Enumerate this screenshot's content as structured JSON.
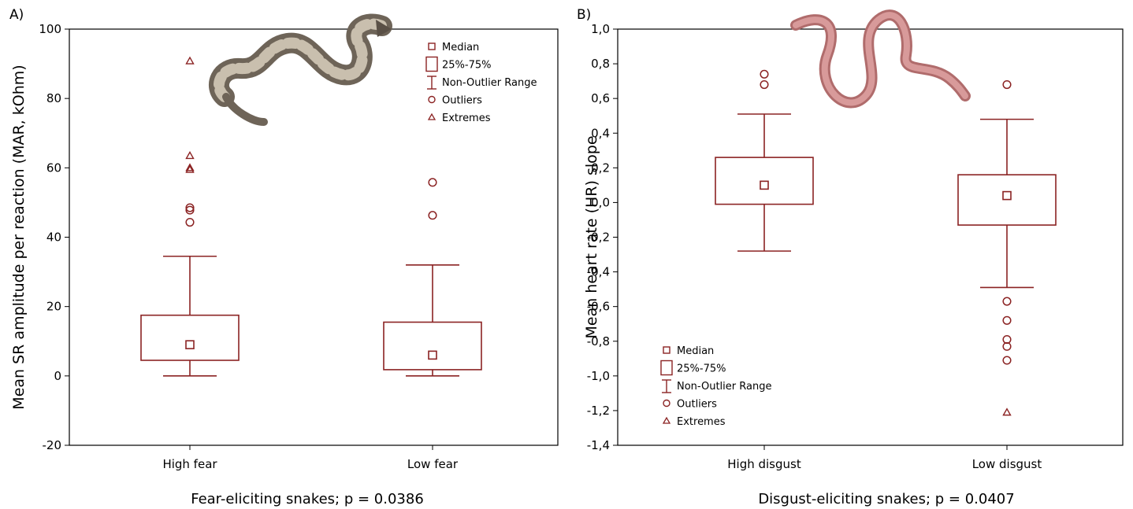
{
  "chart_data": [
    {
      "type": "box",
      "panel_label": "A)",
      "ylabel": "Mean SR amplitude per reaction (MAR, kOhm)",
      "caption": "Fear-eliciting snakes; p = 0.0386",
      "ylim": [
        -20,
        100
      ],
      "yticks": [
        "-20",
        "0",
        "20",
        "40",
        "60",
        "80",
        "100"
      ],
      "ytick_values": [
        -20,
        0,
        20,
        40,
        60,
        80,
        100
      ],
      "categories": [
        "High fear",
        "Low fear"
      ],
      "boxes": [
        {
          "median": 9,
          "q1": 4.5,
          "q3": 17.5,
          "whisker_low": 0,
          "whisker_high": 34.5,
          "outliers": [
            44.3,
            47.8,
            48.5
          ],
          "extremes": [
            59.5,
            60,
            63.5,
            90.8
          ]
        },
        {
          "median": 6,
          "q1": 1.8,
          "q3": 15.5,
          "whisker_low": 0,
          "whisker_high": 32,
          "outliers": [
            46.3,
            55.8
          ],
          "extremes": []
        }
      ],
      "legend": {
        "position": "top-right",
        "entries": [
          "Median",
          "25%-75%",
          "Non-Outlier Range",
          "Outliers",
          "Extremes"
        ]
      },
      "illustration": "viper-snake-image",
      "color": "#8B2323"
    },
    {
      "type": "box",
      "panel_label": "B)",
      "ylabel": "Mean heart rate (HR) slope",
      "caption": "Disgust-eliciting snakes; p = 0.0407",
      "ylim": [
        -1.4,
        1.0
      ],
      "yticks": [
        "-1,4",
        "-1,2",
        "-1,0",
        "-0,8",
        "-0,6",
        "-0,4",
        "-0,2",
        "0,0",
        "0,2",
        "0,4",
        "0,6",
        "0,8",
        "1,0"
      ],
      "ytick_values": [
        -1.4,
        -1.2,
        -1.0,
        -0.8,
        -0.6,
        -0.4,
        -0.2,
        0.0,
        0.2,
        0.4,
        0.6,
        0.8,
        1.0
      ],
      "categories": [
        "High disgust",
        "Low disgust"
      ],
      "boxes": [
        {
          "median": 0.1,
          "q1": -0.01,
          "q3": 0.26,
          "whisker_low": -0.28,
          "whisker_high": 0.51,
          "outliers": [
            0.68,
            0.74
          ],
          "extremes": []
        },
        {
          "median": 0.04,
          "q1": -0.13,
          "q3": 0.16,
          "whisker_low": -0.49,
          "whisker_high": 0.48,
          "outliers": [
            0.68,
            -0.57,
            -0.68,
            -0.79,
            -0.83,
            -0.91
          ],
          "extremes": [
            -1.21
          ]
        }
      ],
      "legend": {
        "position": "bottom-left",
        "entries": [
          "Median",
          "25%-75%",
          "Non-Outlier Range",
          "Outliers",
          "Extremes"
        ]
      },
      "illustration": "blind-snake-image",
      "color": "#8B2323"
    }
  ]
}
